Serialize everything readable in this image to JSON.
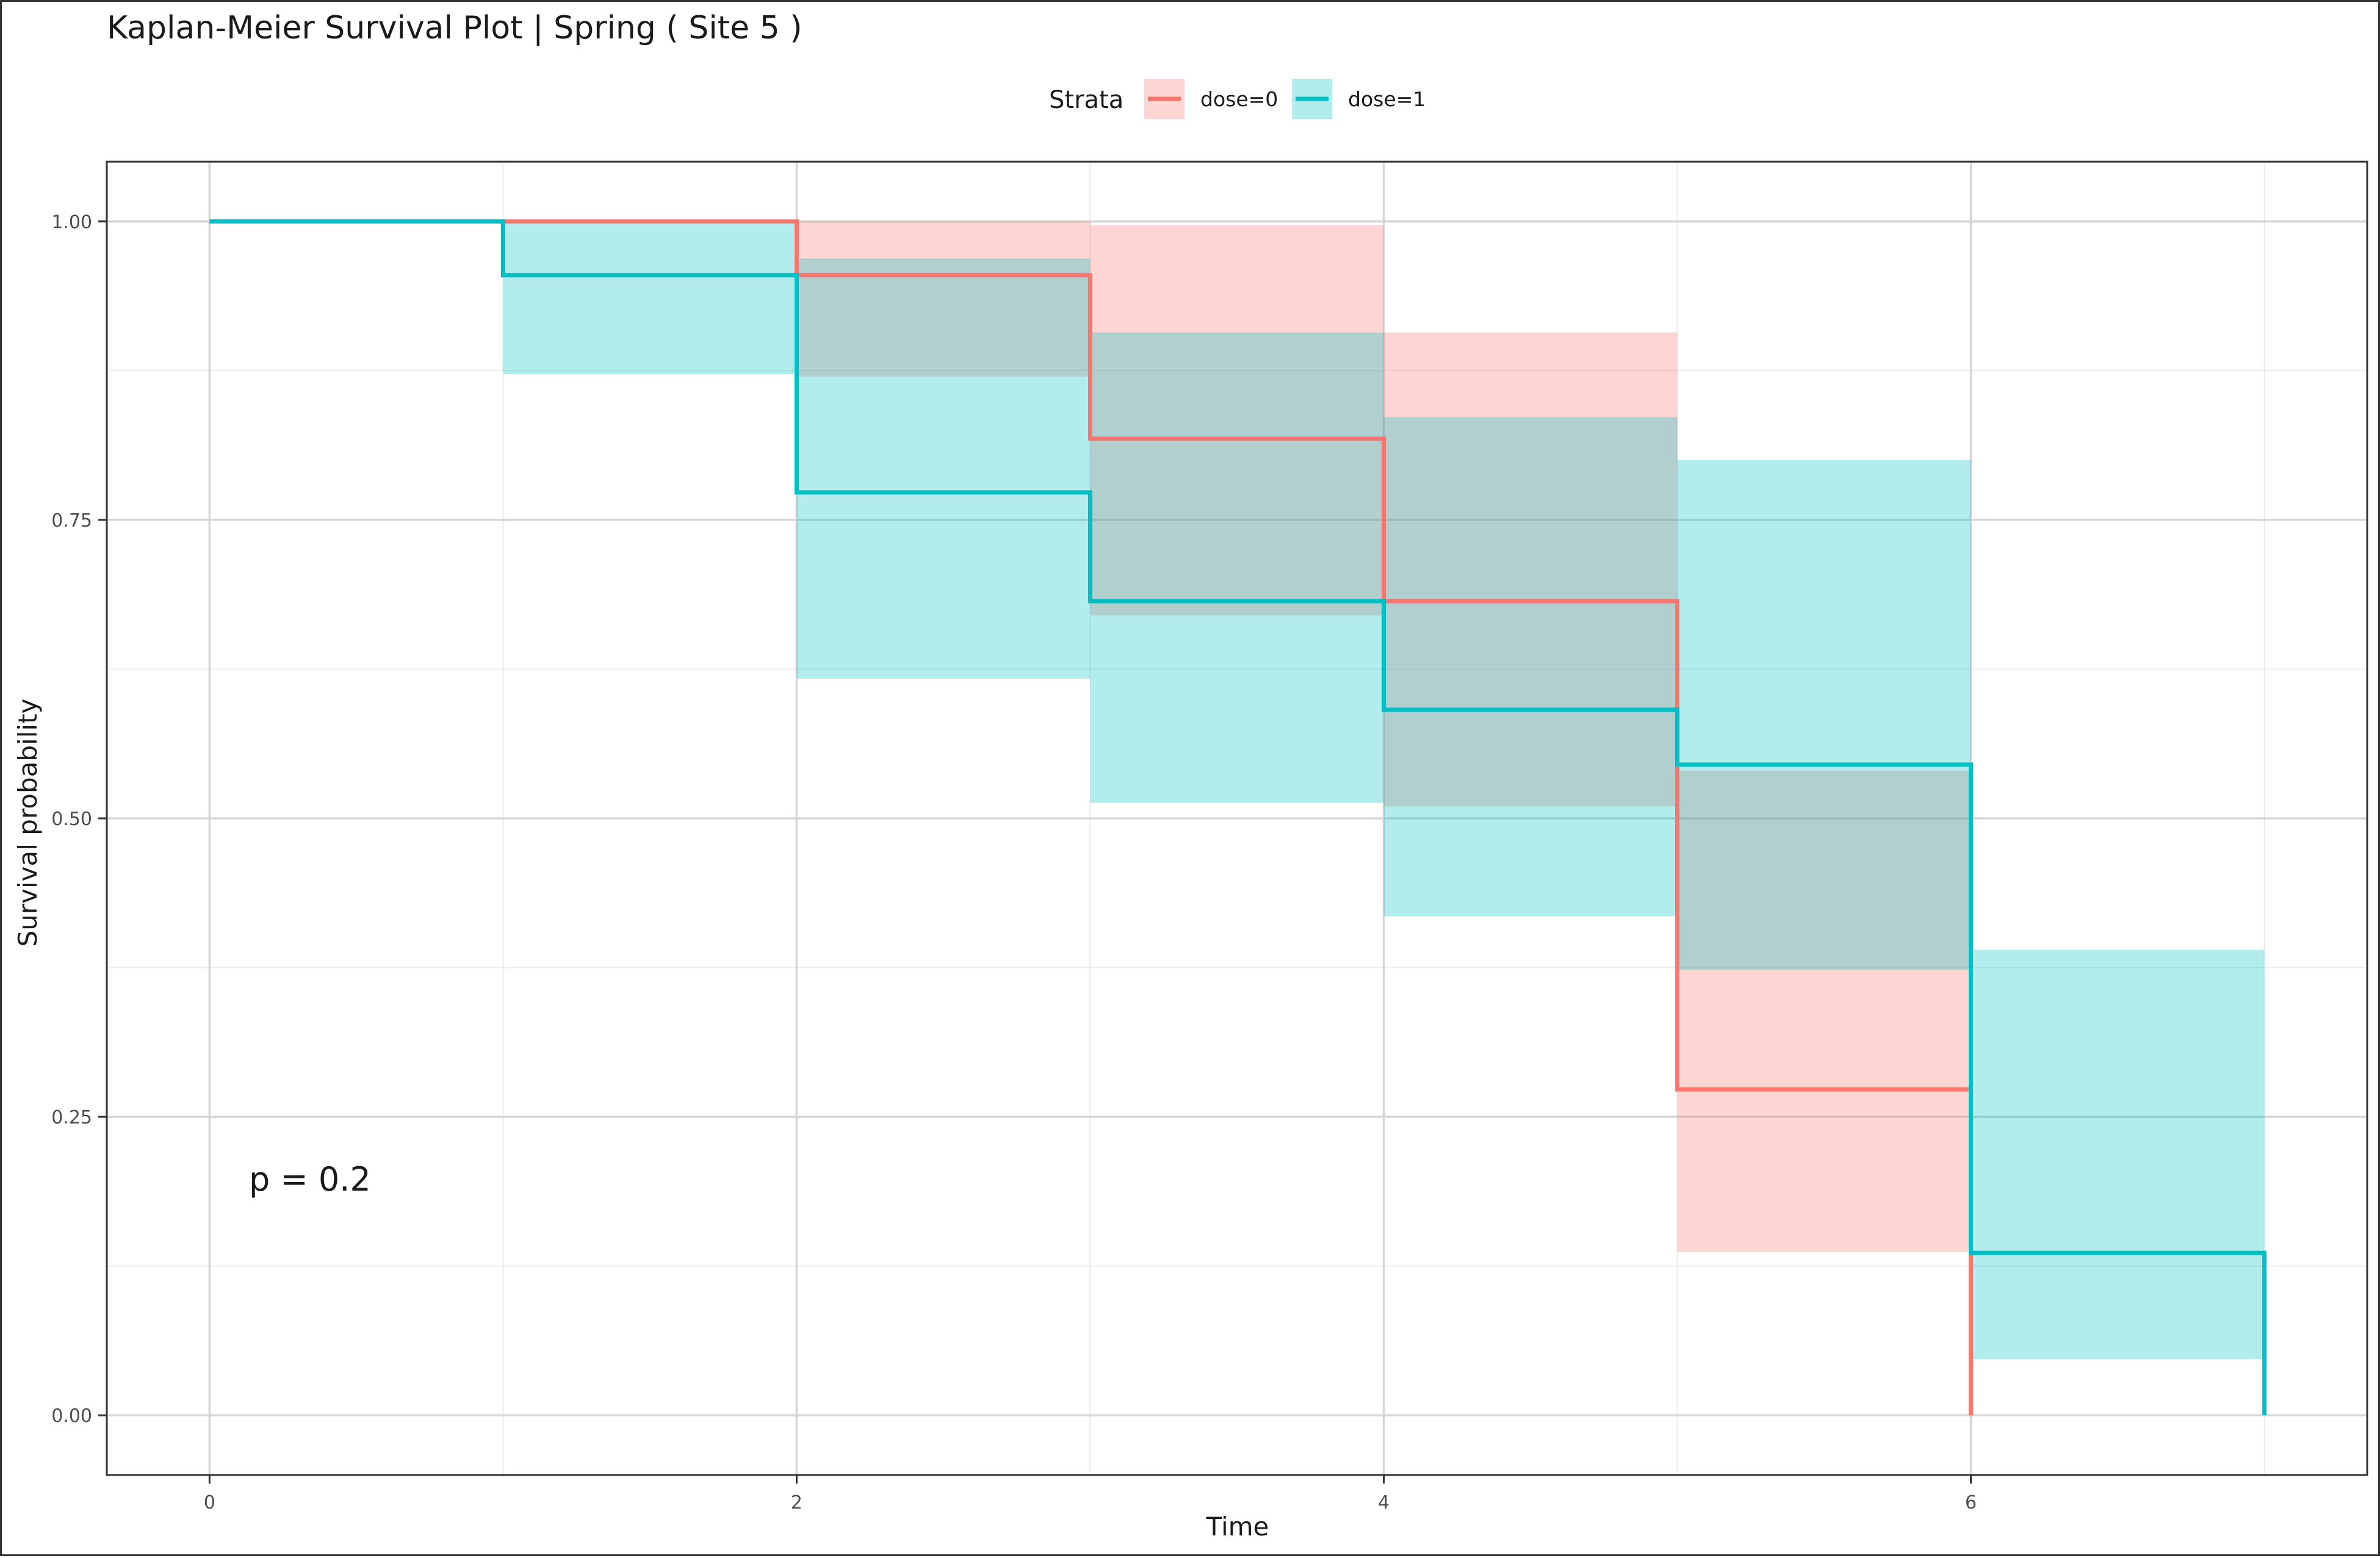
{
  "chart_data": {
    "type": "line",
    "subtype": "step",
    "title": "Kaplan-Meier Survival Plot | Spring  ( Site 5 )",
    "xlabel": "Time",
    "ylabel": "Survival probability",
    "xlim": [
      -0.35,
      7.35
    ],
    "ylim": [
      -0.05,
      1.05
    ],
    "x_ticks": [
      0,
      2,
      4,
      6
    ],
    "x_tick_labels": [
      "0",
      "2",
      "4",
      "6"
    ],
    "y_ticks": [
      0,
      0.25,
      0.5,
      0.75,
      1
    ],
    "y_tick_labels": [
      "0.00",
      "0.25",
      "0.50",
      "0.75",
      "1.00"
    ],
    "grid": true,
    "legend": {
      "title": "Strata",
      "position": "top"
    },
    "annotation": "p = 0.2",
    "series": [
      {
        "name": "dose=0",
        "color": "#F8766D",
        "x": [
          0,
          2,
          3,
          4,
          5,
          6
        ],
        "surv": [
          1.0,
          0.955,
          0.818,
          0.682,
          0.273,
          0.0
        ],
        "ci_lower": [
          1.0,
          0.87,
          0.67,
          0.51,
          0.137,
          0.0
        ],
        "ci_upper": [
          1.0,
          1.0,
          0.997,
          0.907,
          0.54,
          0.0
        ],
        "end_x": 6
      },
      {
        "name": "dose=1",
        "color": "#00BFC4",
        "x": [
          0,
          1,
          2,
          3,
          4,
          5,
          6,
          7
        ],
        "surv": [
          1.0,
          0.955,
          0.773,
          0.682,
          0.591,
          0.545,
          0.136,
          0.0
        ],
        "ci_lower": [
          1.0,
          0.872,
          0.617,
          0.513,
          0.418,
          0.373,
          0.047,
          0.0
        ],
        "ci_upper": [
          1.0,
          1.0,
          0.969,
          0.907,
          0.836,
          0.8,
          0.39,
          0.0
        ],
        "end_x": 7
      }
    ]
  }
}
